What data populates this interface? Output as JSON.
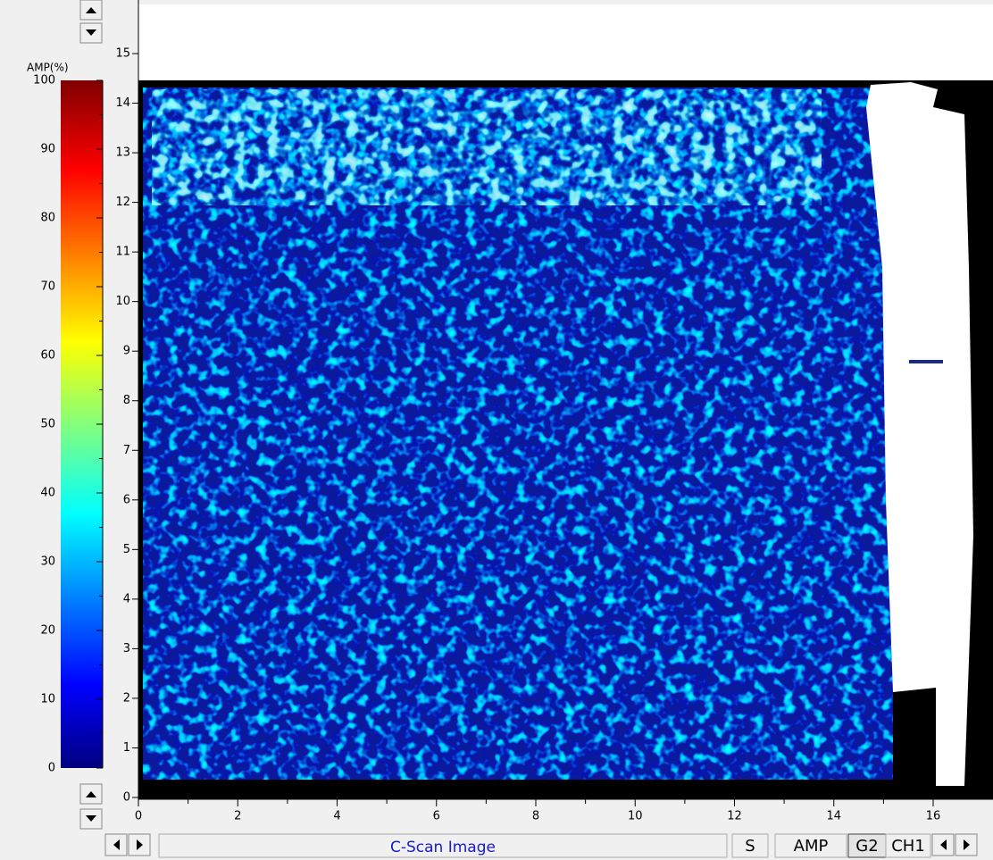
{
  "colorbar": {
    "label": "AMP(%)",
    "ticks": [
      0,
      10,
      20,
      30,
      40,
      50,
      60,
      70,
      80,
      90,
      100
    ]
  },
  "y_axis": {
    "ticks": [
      0,
      1,
      2,
      3,
      4,
      5,
      6,
      7,
      8,
      9,
      10,
      11,
      12,
      13,
      14,
      15
    ]
  },
  "x_axis": {
    "ticks": [
      0,
      2,
      4,
      6,
      8,
      10,
      12,
      14,
      16
    ]
  },
  "footer": {
    "title": "C-Scan Image",
    "buttons": [
      "S",
      "AMP",
      "G2",
      "CH1"
    ]
  }
}
